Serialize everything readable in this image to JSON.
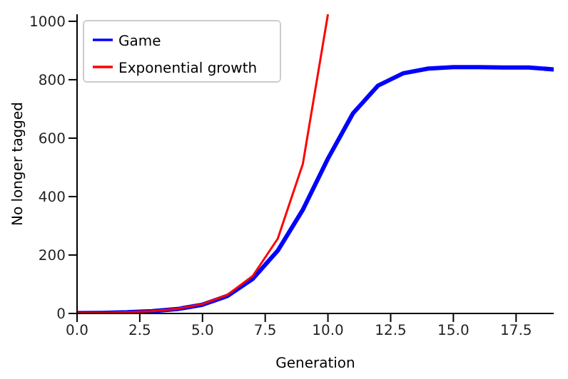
{
  "chart_data": {
    "type": "line",
    "xlabel": "Generation",
    "ylabel": "No longer tagged",
    "xlim": [
      0,
      19
    ],
    "ylim": [
      0,
      1024
    ],
    "xticks": [
      {
        "value": 0,
        "label": "0.0"
      },
      {
        "value": 2.5,
        "label": "2.5"
      },
      {
        "value": 5,
        "label": "5.0"
      },
      {
        "value": 7.5,
        "label": "7.5"
      },
      {
        "value": 10,
        "label": "10.0"
      },
      {
        "value": 12.5,
        "label": "12.5"
      },
      {
        "value": 15,
        "label": "15.0"
      },
      {
        "value": 17.5,
        "label": "17.5"
      }
    ],
    "yticks": [
      0,
      200,
      400,
      600,
      800,
      1000
    ],
    "legend": "top left",
    "grid": false,
    "marker": "none",
    "line_style": "solid",
    "series": [
      {
        "name": "Game",
        "color": "#0000ff",
        "x": [
          0,
          1,
          2,
          3,
          4,
          5,
          6,
          7,
          8,
          9,
          10,
          11,
          12,
          13,
          14,
          15,
          16,
          17,
          18,
          19
        ],
        "values": [
          1,
          2,
          4,
          8,
          15,
          30,
          60,
          118,
          215,
          355,
          530,
          685,
          780,
          822,
          838,
          843,
          843,
          842,
          842,
          835
        ]
      },
      {
        "name": "Exponential growth",
        "color": "#ff0000",
        "x": [
          0,
          1,
          2,
          3,
          4,
          5,
          6,
          7,
          8,
          9,
          10
        ],
        "values": [
          1,
          2,
          4,
          8,
          16,
          32,
          64,
          128,
          256,
          512,
          1024
        ]
      }
    ]
  }
}
